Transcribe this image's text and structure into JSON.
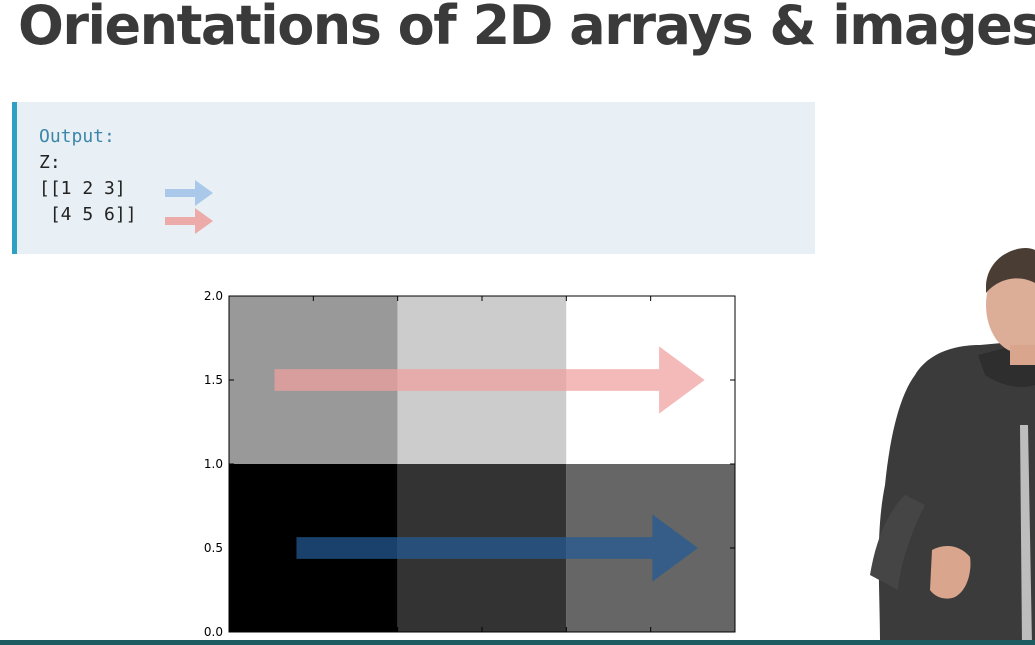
{
  "slide": {
    "title": "Orientations of 2D arrays & images"
  },
  "output_box": {
    "label": "Output:",
    "lines": [
      "Z:",
      "[[1 2 3]",
      " [4 5 6]]"
    ],
    "row_arrow_colors": [
      "#a9c8ea",
      "#ecaaa8"
    ],
    "accent_color": "#2ea0c4",
    "background_color": "#e8f0f6"
  },
  "chart_data": {
    "type": "heatmap",
    "title": "",
    "xlabel": "",
    "ylabel": "",
    "xlim": [
      0.0,
      3.0
    ],
    "ylim": [
      0.0,
      2.0
    ],
    "yticks": [
      "0.0",
      "0.5",
      "1.0",
      "1.5",
      "2.0"
    ],
    "xticks_note": "x tick labels cut off at bottom edge",
    "origin": "lower",
    "cmap": "gray",
    "grid": false,
    "values": [
      [
        1,
        2,
        3
      ],
      [
        4,
        5,
        6
      ]
    ],
    "arrows": [
      {
        "row": 0,
        "direction": "left-to-right",
        "color": "#245a94"
      },
      {
        "row": 1,
        "direction": "left-to-right",
        "color": "#f0a0a0"
      }
    ]
  },
  "presenter": {
    "icon": "presenter-figure"
  },
  "footer": {
    "bar_color": "#1d5c60"
  }
}
